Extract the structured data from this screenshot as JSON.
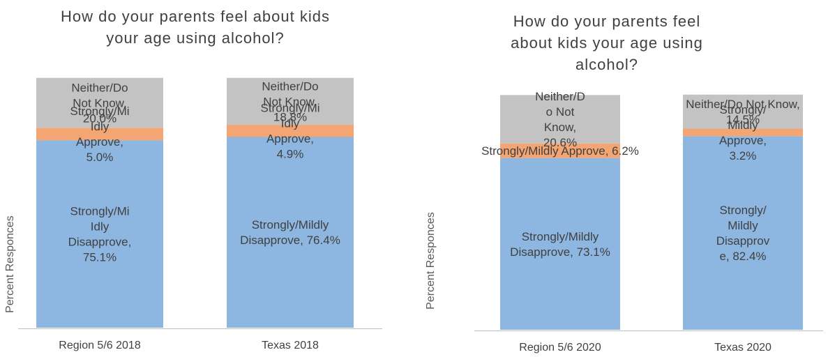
{
  "chart_data": [
    {
      "type": "bar",
      "stacked": true,
      "title": "How do your parents feel about kids your age using alcohol?",
      "ylabel": "Percent Responces",
      "xlabel": "",
      "categories": [
        "Region 5/6 2018",
        "Texas 2018"
      ],
      "ylim": [
        0,
        100
      ],
      "grid": false,
      "legend": "none",
      "series": [
        {
          "name": "Strongly/Mildly Disapprove",
          "color": "#8db6e0",
          "values": [
            75.1,
            76.4
          ],
          "labels": [
            "Strongly/Mi\nIdly\nDisapprove,\n75.1%",
            "Strongly/Mildly\nDisapprove, 76.4%"
          ]
        },
        {
          "name": "Strongly/Mildly Approve",
          "color": "#f3a573",
          "values": [
            5.0,
            4.9
          ],
          "labels": [
            "Strongly/Mi\nIdly\nApprove,\n5.0%",
            "Strongly/Mi\nIdly\nApprove,\n4.9%"
          ]
        },
        {
          "name": "Neither/Do Not Know",
          "color": "#c3c3c3",
          "values": [
            20.0,
            18.8
          ],
          "labels": [
            "Neither/Do\nNot Know,\n20.0%",
            "Neither/Do\nNot Know,\n18.8%"
          ]
        }
      ]
    },
    {
      "type": "bar",
      "stacked": true,
      "title": "How do your parents feel about kids your age using alcohol?",
      "ylabel": "Percent Responces",
      "xlabel": "",
      "categories": [
        "Region 5/6 2020",
        "Texas 2020"
      ],
      "ylim": [
        0,
        100
      ],
      "grid": false,
      "legend": "none",
      "series": [
        {
          "name": "Strongly/Mildly Disapprove",
          "color": "#8db6e0",
          "values": [
            73.1,
            82.4
          ],
          "labels": [
            "Strongly/Mildly\nDisapprove, 73.1%",
            "Strongly/\nMildly\nDisapprov\ne, 82.4%"
          ]
        },
        {
          "name": "Strongly/Mildly Approve",
          "color": "#f3a573",
          "values": [
            6.2,
            3.2
          ],
          "labels": [
            "Strongly/Mildly Approve, 6.2%",
            "Strongly/\nMildly\nApprove,\n3.2%"
          ]
        },
        {
          "name": "Neither/Do Not Know",
          "color": "#c3c3c3",
          "values": [
            20.6,
            14.5
          ],
          "labels": [
            "Neither/D\no Not\nKnow,\n20.6%",
            "Neither/Do Not Know,\n14.5%"
          ]
        }
      ]
    }
  ]
}
